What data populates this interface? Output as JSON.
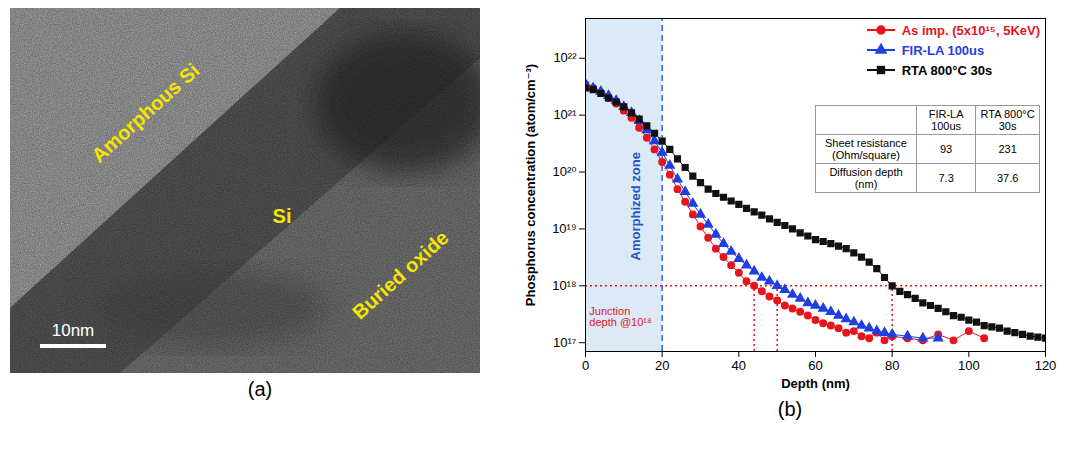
{
  "panel_labels": [
    "(a)",
    "(b)"
  ],
  "image_panel": {
    "labels": [
      "Amorphous Si",
      "Si",
      "Buried oxide"
    ],
    "scale_bar": "10nm"
  },
  "chart_data": {
    "type": "line",
    "x_label": "Depth (nm)",
    "y_label": "Phosphorus concentration (atom/cm⁻³)",
    "xlim": [
      0,
      120
    ],
    "xticks": [
      0,
      20,
      40,
      60,
      80,
      100,
      120
    ],
    "ylim": [
      7e+16,
      5e+22
    ],
    "yticks": [
      {
        "value": 1e+17,
        "label": "10¹⁷"
      },
      {
        "value": 1e+18,
        "label": "10¹⁸"
      },
      {
        "value": 1e+19,
        "label": "10¹⁹"
      },
      {
        "value": 1e+20,
        "label": "10²⁰"
      },
      {
        "value": 1e+21,
        "label": "10²¹"
      },
      {
        "value": 1e+22,
        "label": "10²²"
      }
    ],
    "log": "y",
    "grid": false,
    "legend": "top-right",
    "series": [
      {
        "name": "As imp. (5x10¹⁵, 5KeV)",
        "color": "#e8141c",
        "marker": "circle",
        "line_style": "solid",
        "x": [
          0,
          2,
          4,
          6,
          8,
          10,
          12,
          14,
          16,
          18,
          20,
          22,
          24,
          26,
          28,
          30,
          32,
          34,
          36,
          38,
          40,
          42,
          44,
          46,
          48,
          50,
          52,
          54,
          56,
          58,
          60,
          62,
          64,
          66,
          68,
          70,
          72,
          74,
          76,
          78,
          80,
          84,
          88,
          92,
          96,
          100,
          104
        ],
        "values": [
          3.5e+21,
          3e+21,
          2.5e+21,
          2e+21,
          1.6e+21,
          1.2e+21,
          9e+20,
          6e+20,
          4e+20,
          2.5e+20,
          1.5e+20,
          9e+19,
          5e+19,
          3e+19,
          1.8e+19,
          1.1e+19,
          7e+18,
          4.5e+18,
          3.2e+18,
          2.3e+18,
          1.7e+18,
          1.2e+18,
          1e+18,
          8e+17,
          6.5e+17,
          5.5e+17,
          4.5e+17,
          4e+17,
          3.5e+17,
          3e+17,
          2.5e+17,
          2.2e+17,
          2e+17,
          1.8e+17,
          1.5e+17,
          1.6e+17,
          1.3e+17,
          1.2e+17,
          1.5e+17,
          1.1e+17,
          1.3e+17,
          1.2e+17,
          1.1e+17,
          1.4e+17,
          1.1e+17,
          1.6e+17,
          1.2e+17
        ]
      },
      {
        "name": "FIR-LA 100us",
        "color": "#1f3fe0",
        "marker": "triangle",
        "line_style": "solid",
        "x": [
          0,
          2,
          4,
          6,
          8,
          10,
          12,
          14,
          16,
          18,
          20,
          22,
          24,
          26,
          28,
          30,
          32,
          34,
          36,
          38,
          40,
          42,
          44,
          46,
          48,
          50,
          52,
          54,
          56,
          58,
          60,
          62,
          64,
          66,
          68,
          70,
          72,
          74,
          76,
          78,
          80,
          84,
          88,
          92
        ],
        "values": [
          3.5e+21,
          3e+21,
          2.6e+21,
          2.2e+21,
          1.8e+21,
          1.4e+21,
          1.1e+21,
          8e+20,
          5.5e+20,
          3.5e+20,
          2.2e+20,
          1.3e+20,
          7.5e+19,
          4.5e+19,
          2.8e+19,
          1.8e+19,
          1.2e+19,
          8e+18,
          5.5e+18,
          4e+18,
          3e+18,
          2.3e+18,
          1.8e+18,
          1.4e+18,
          1.2e+18,
          1e+18,
          8.5e+17,
          7e+17,
          6e+17,
          5e+17,
          4.5e+17,
          4e+17,
          3.5e+17,
          3e+17,
          2.6e+17,
          2.3e+17,
          2e+17,
          1.8e+17,
          1.6e+17,
          1.5e+17,
          1.4e+17,
          1.3e+17,
          1.2e+17,
          1.2e+17
        ]
      },
      {
        "name": "RTA 800°C 30s",
        "color": "#111111",
        "marker": "square",
        "line_style": "solid",
        "x": [
          0,
          2,
          4,
          6,
          8,
          10,
          12,
          14,
          16,
          18,
          20,
          22,
          24,
          26,
          28,
          30,
          32,
          34,
          36,
          38,
          40,
          42,
          44,
          46,
          48,
          50,
          52,
          54,
          56,
          58,
          60,
          62,
          64,
          66,
          68,
          70,
          72,
          74,
          76,
          78,
          80,
          82,
          84,
          86,
          88,
          90,
          92,
          94,
          96,
          98,
          100,
          102,
          104,
          106,
          108,
          110,
          112,
          114,
          116,
          118,
          120
        ],
        "values": [
          3e+21,
          2.8e+21,
          2.4e+21,
          2e+21,
          1.7e+21,
          1.4e+21,
          1.1e+21,
          8.5e+20,
          6.5e+20,
          4.8e+20,
          3.5e+20,
          2.5e+20,
          1.7e+20,
          1.2e+20,
          8.5e+19,
          6.5e+19,
          5e+19,
          4.2e+19,
          3.6e+19,
          3.1e+19,
          2.7e+19,
          2.3e+19,
          2e+19,
          1.75e+19,
          1.5e+19,
          1.3e+19,
          1.15e+19,
          1e+19,
          8.5e+18,
          7.5e+18,
          6.5e+18,
          6e+18,
          5.5e+18,
          5e+18,
          4.5e+18,
          3.8e+18,
          3.2e+18,
          2.6e+18,
          2e+18,
          1.4e+18,
          1e+18,
          8e+17,
          7e+17,
          6e+17,
          5e+17,
          4.5e+17,
          4e+17,
          3.5e+17,
          3e+17,
          2.8e+17,
          2.5e+17,
          2.3e+17,
          2e+17,
          1.9e+17,
          1.8e+17,
          1.6e+17,
          1.5e+17,
          1.4e+17,
          1.3e+17,
          1.25e+17,
          1.2e+17
        ]
      }
    ],
    "amorphized_zone": {
      "label": "Amorphized zone",
      "from": 0,
      "to": 20
    },
    "junction": {
      "label": "Junction depth @10¹⁸",
      "level": 1e+18,
      "depths": [
        44,
        50,
        80
      ]
    },
    "table": {
      "columns": [
        "FIR-LA 100us",
        "RTA 800°C 30s"
      ],
      "rows": [
        {
          "label": "Sheet resistance (Ohm/square)",
          "values": [
            93,
            231
          ]
        },
        {
          "label": "Diffusion depth (nm)",
          "values": [
            7.3,
            37.6
          ]
        }
      ]
    }
  }
}
